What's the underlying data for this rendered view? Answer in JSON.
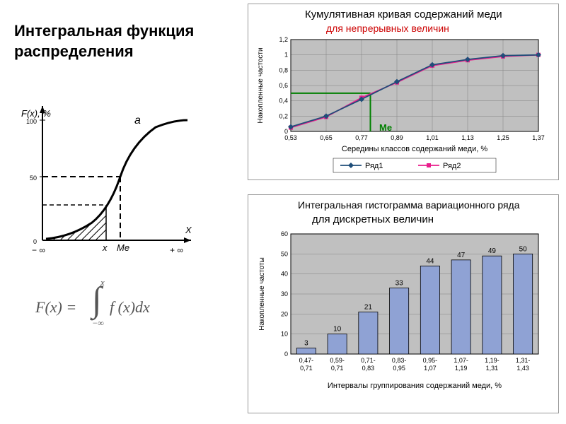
{
  "title_line1": "Интегральная функция",
  "title_line2": "распределения",
  "top_chart": {
    "heading": "Кумулятивная кривая содержаний меди",
    "subtitle": "для непрерывных величин",
    "ylabel": "Накопленные частости",
    "xlabel": "Середины классов содержаний меди, %",
    "x_ticks": [
      "0,53",
      "0,65",
      "0,77",
      "0,89",
      "1,01",
      "1,13",
      "1,25",
      "1,37"
    ],
    "y_ticks": [
      "0",
      "0,2",
      "0,4",
      "0,6",
      "0,8",
      "1",
      "1,2"
    ],
    "ylim": [
      0,
      1.2
    ],
    "series1": {
      "name": "Ряд1",
      "color": "#1F4E79",
      "marker": "diamond",
      "values": [
        0.06,
        0.2,
        0.42,
        0.65,
        0.87,
        0.94,
        0.99,
        1.0
      ]
    },
    "series2": {
      "name": "Ряд2",
      "color": "#E91E8C",
      "marker": "square",
      "values": [
        0.05,
        0.19,
        0.44,
        0.64,
        0.86,
        0.93,
        0.98,
        1.0
      ]
    },
    "me_label": "Me",
    "me_x_value": 0.8,
    "me_y_value": 0.5,
    "grid_color": "#808080",
    "background": "#C0C0C0"
  },
  "bottom_chart": {
    "heading": "Интегральная гистограмма вариационного ряда",
    "subtitle": "для дискретных величин",
    "ylabel": "Накопленные частоты",
    "xlabel": "Интервалы группирования содержаний меди, %",
    "x_labels": [
      "0,47-0,71",
      "0,59-0,71",
      "0,71-0,83",
      "0,83-0,95",
      "0,95-1,07",
      "1,07-1,19",
      "1,19-1,31",
      "1,31-1,43"
    ],
    "y_ticks": [
      0,
      10,
      20,
      30,
      40,
      50,
      60
    ],
    "ylim": [
      0,
      60
    ],
    "values": [
      3,
      10,
      21,
      33,
      44,
      47,
      49,
      50
    ],
    "bar_color": "#8FA2D4",
    "bar_border": "#000000",
    "grid_color": "#808080",
    "background": "#C0C0C0"
  },
  "left_diagram": {
    "y_axis_label": "F(x), %",
    "x_axis_label": "X",
    "y_ticks": [
      "0",
      "50",
      "100"
    ],
    "x_marks": [
      "x",
      "Me"
    ],
    "corner_label": "a",
    "neg_inf": "− ∞",
    "pos_inf": "+ ∞"
  },
  "formula": {
    "lhs": "F(x) =",
    "upper": "x",
    "lower": "−∞",
    "integrand": "f (x)dx"
  }
}
